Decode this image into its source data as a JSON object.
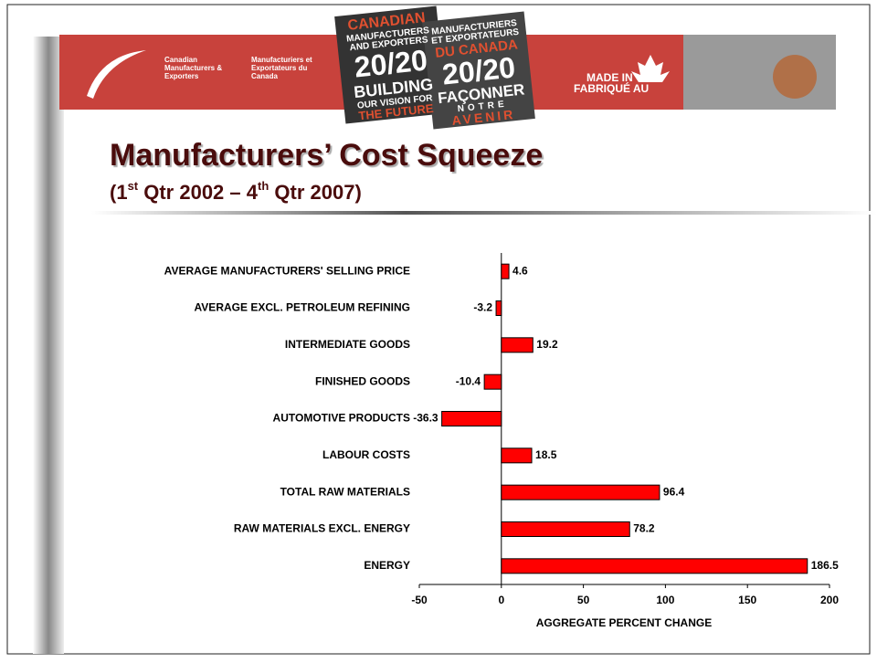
{
  "banner": {
    "org_en": [
      "Canadian",
      "Manufacturers &",
      "Exporters"
    ],
    "org_fr": [
      "Manufacturiers et",
      "Exportateurs du",
      "Canada"
    ],
    "logo_en": [
      "CANADIAN",
      "MANUFACTURERS",
      "AND EXPORTERS",
      "20/20",
      "BUILDING",
      "OUR VISION FOR",
      "THE FUTURE"
    ],
    "logo_fr": [
      "MANUFACTURIERS",
      "ET EXPORTATEURS",
      "DU CANADA",
      "20/20",
      "FAÇONNER",
      "NOTRE",
      "AVENIR"
    ],
    "made_in": [
      "MADE IN",
      "FABRIQUÉ AU"
    ]
  },
  "header": {
    "title": "Manufacturers’ Cost Squeeze",
    "subtitle_parts": [
      "(1",
      "st",
      " Qtr 2002 – 4",
      "th",
      " Qtr 2007)"
    ]
  },
  "chart_data": {
    "type": "hbar",
    "categories": [
      "AVERAGE MANUFACTURERS' SELLING PRICE",
      "AVERAGE EXCL. PETROLEUM REFINING",
      "INTERMEDIATE GOODS",
      "FINISHED GOODS",
      "AUTOMOTIVE PRODUCTS",
      "LABOUR COSTS",
      "TOTAL RAW MATERIALS",
      "RAW MATERIALS EXCL. ENERGY",
      "ENERGY"
    ],
    "values": [
      4.6,
      -3.2,
      19.2,
      -10.4,
      -36.3,
      18.5,
      96.4,
      78.2,
      186.5
    ],
    "color": "#ff0000",
    "xlim": [
      -50,
      200
    ],
    "xticks": [
      -50,
      0,
      50,
      100,
      150,
      200
    ],
    "xlabel": "AGGREGATE PERCENT CHANGE"
  }
}
